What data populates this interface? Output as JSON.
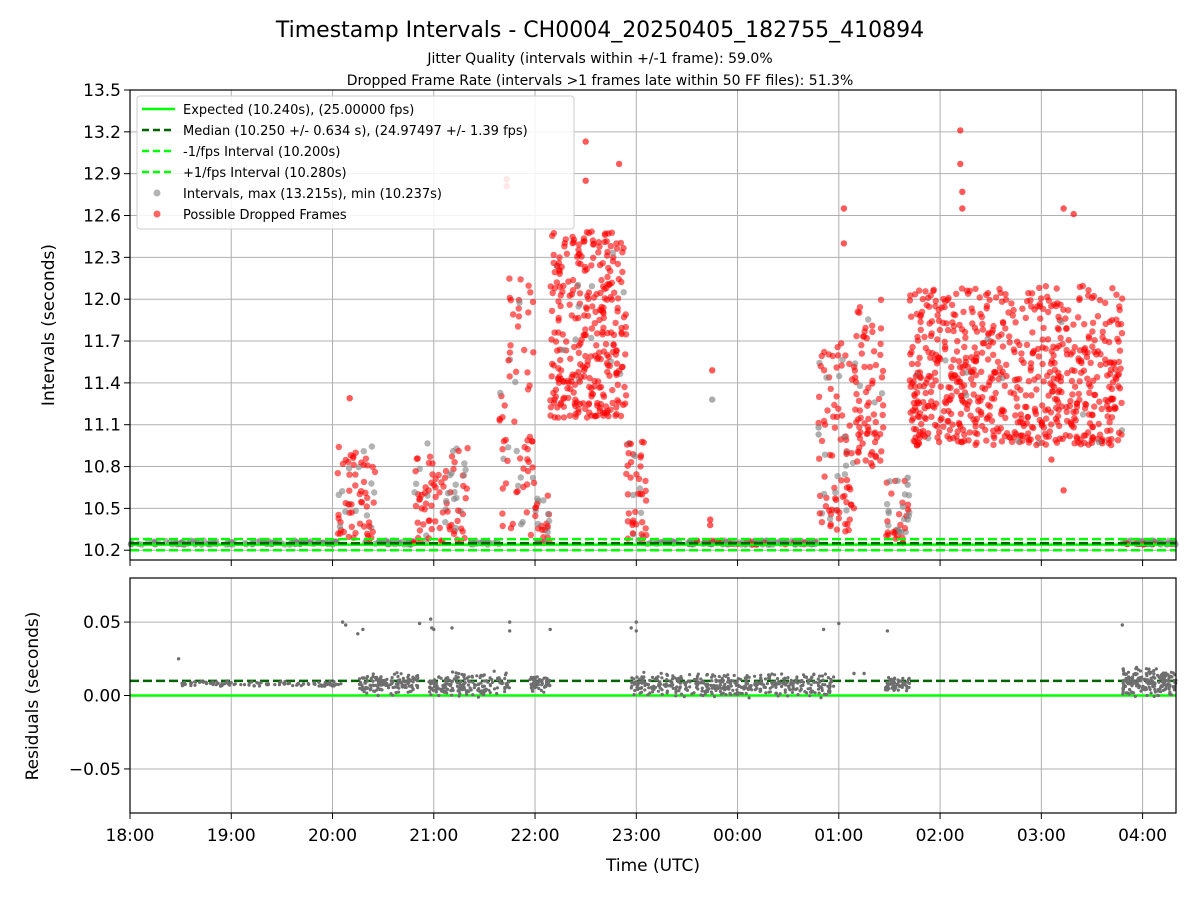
{
  "figure": {
    "title": "Timestamp Intervals - CH0004_20250405_182755_410894",
    "subtitle_1": "Jitter Quality (intervals within +/-1 frame): 59.0%",
    "subtitle_2": "Dropped Frame Rate (intervals >1 frames late within 50 FF files): 51.3%"
  },
  "colors": {
    "expected": "#00ff00",
    "median": "#006400",
    "fps_interval": "#00ff00",
    "intervals": "#808080",
    "dropped": "#ff0000",
    "grid": "#b0b0b0"
  },
  "chart_data": [
    {
      "type": "scatter",
      "panel": "top",
      "ylabel": "Intervals (seconds)",
      "xlabel": "",
      "x_ticks": [
        "18:00",
        "19:00",
        "20:00",
        "21:00",
        "22:00",
        "23:00",
        "00:00",
        "01:00",
        "02:00",
        "03:00",
        "04:00"
      ],
      "y_ticks": [
        "10.2",
        "10.5",
        "10.8",
        "11.1",
        "11.4",
        "11.7",
        "12.0",
        "12.3",
        "12.6",
        "12.9",
        "13.2",
        "13.5"
      ],
      "ylim": [
        10.13,
        13.5
      ],
      "xlim_hours": [
        18.0,
        28.33
      ],
      "grid": true,
      "legend_placement": "top-left",
      "reference_lines": [
        {
          "name": "Expected (10.240s), (25.00000 fps)",
          "y": 10.24,
          "style": "solid"
        },
        {
          "name": "Median (10.250 +/- 0.634 s), (24.97497 +/- 1.39 fps)",
          "y": 10.25,
          "style": "dashed"
        },
        {
          "name": "-1/fps Interval (10.200s)",
          "y": 10.2,
          "style": "dashed"
        },
        {
          "name": "+1/fps Interval (10.280s)",
          "y": 10.28,
          "style": "dashed"
        }
      ],
      "series": [
        {
          "name": "Intervals, max (13.215s), min (10.237s)",
          "marker": "circle"
        },
        {
          "name": "Possible Dropped Frames",
          "marker": "circle"
        }
      ],
      "clusters": [
        {
          "x_start": 18.0,
          "x_end": 20.05,
          "y_min": 10.24,
          "y_max": 10.27,
          "n": 120,
          "dropped_ratio": 0.0
        },
        {
          "x_start": 20.05,
          "x_end": 20.42,
          "y_min": 10.25,
          "y_max": 10.98,
          "n": 70,
          "dropped_ratio": 0.7
        },
        {
          "x_start": 20.42,
          "x_end": 20.8,
          "y_min": 10.24,
          "y_max": 10.27,
          "n": 30,
          "dropped_ratio": 0.0
        },
        {
          "x_start": 20.8,
          "x_end": 21.35,
          "y_min": 10.25,
          "y_max": 10.97,
          "n": 95,
          "dropped_ratio": 0.75
        },
        {
          "x_start": 21.35,
          "x_end": 21.65,
          "y_min": 10.24,
          "y_max": 10.27,
          "n": 20,
          "dropped_ratio": 0.0
        },
        {
          "x_start": 21.65,
          "x_end": 22.0,
          "y_min": 10.3,
          "y_max": 12.24,
          "n": 70,
          "dropped_ratio": 0.85
        },
        {
          "x_start": 22.0,
          "x_end": 22.15,
          "y_min": 10.25,
          "y_max": 10.6,
          "n": 30,
          "dropped_ratio": 0.5
        },
        {
          "x_start": 22.15,
          "x_end": 22.9,
          "y_min": 11.15,
          "y_max": 12.5,
          "n": 320,
          "dropped_ratio": 0.97
        },
        {
          "x_start": 22.9,
          "x_end": 23.1,
          "y_min": 10.25,
          "y_max": 11.0,
          "n": 45,
          "dropped_ratio": 0.9
        },
        {
          "x_start": 23.1,
          "x_end": 24.8,
          "y_min": 10.24,
          "y_max": 10.27,
          "n": 160,
          "dropped_ratio": 0.1
        },
        {
          "x_start": 24.8,
          "x_end": 25.15,
          "y_min": 10.3,
          "y_max": 11.7,
          "n": 90,
          "dropped_ratio": 0.85
        },
        {
          "x_start": 25.15,
          "x_end": 25.45,
          "y_min": 10.8,
          "y_max": 12.0,
          "n": 80,
          "dropped_ratio": 0.95
        },
        {
          "x_start": 25.45,
          "x_end": 25.7,
          "y_min": 10.25,
          "y_max": 10.7,
          "n": 40,
          "dropped_ratio": 0.6
        },
        {
          "x_start": 25.7,
          "x_end": 27.8,
          "y_min": 10.95,
          "y_max": 12.1,
          "n": 700,
          "dropped_ratio": 0.98
        },
        {
          "x_start": 27.8,
          "x_end": 28.33,
          "y_min": 10.24,
          "y_max": 10.27,
          "n": 60,
          "dropped_ratio": 0.15
        }
      ],
      "outliers": [
        {
          "x": 20.17,
          "y": 11.29,
          "kind": "dropped"
        },
        {
          "x": 21.72,
          "y": 12.86,
          "kind": "dropped"
        },
        {
          "x": 21.72,
          "y": 12.81,
          "kind": "dropped"
        },
        {
          "x": 22.5,
          "y": 13.13,
          "kind": "dropped"
        },
        {
          "x": 22.83,
          "y": 12.97,
          "kind": "dropped"
        },
        {
          "x": 22.5,
          "y": 12.85,
          "kind": "dropped"
        },
        {
          "x": 23.75,
          "y": 11.49,
          "kind": "dropped"
        },
        {
          "x": 23.75,
          "y": 11.28,
          "kind": "interval"
        },
        {
          "x": 23.73,
          "y": 10.42,
          "kind": "dropped"
        },
        {
          "x": 23.73,
          "y": 10.38,
          "kind": "dropped"
        },
        {
          "x": 25.05,
          "y": 12.65,
          "kind": "dropped"
        },
        {
          "x": 25.05,
          "y": 12.4,
          "kind": "dropped"
        },
        {
          "x": 26.2,
          "y": 13.21,
          "kind": "dropped"
        },
        {
          "x": 26.2,
          "y": 12.97,
          "kind": "dropped"
        },
        {
          "x": 26.22,
          "y": 12.77,
          "kind": "dropped"
        },
        {
          "x": 26.22,
          "y": 12.65,
          "kind": "dropped"
        },
        {
          "x": 27.22,
          "y": 12.65,
          "kind": "dropped"
        },
        {
          "x": 27.32,
          "y": 12.61,
          "kind": "dropped"
        },
        {
          "x": 27.22,
          "y": 10.63,
          "kind": "dropped"
        },
        {
          "x": 27.1,
          "y": 10.85,
          "kind": "dropped"
        },
        {
          "x": 25.68,
          "y": 10.72,
          "kind": "interval"
        },
        {
          "x": 25.68,
          "y": 10.67,
          "kind": "interval"
        },
        {
          "x": 25.68,
          "y": 10.42,
          "kind": "interval"
        },
        {
          "x": 24.8,
          "y": 11.08,
          "kind": "interval"
        },
        {
          "x": 24.8,
          "y": 11.03,
          "kind": "interval"
        }
      ]
    },
    {
      "type": "scatter",
      "panel": "bottom",
      "ylabel": "Residuals (seconds)",
      "xlabel": "Time (UTC)",
      "x_ticks": [
        "18:00",
        "19:00",
        "20:00",
        "21:00",
        "22:00",
        "23:00",
        "00:00",
        "01:00",
        "02:00",
        "03:00",
        "04:00"
      ],
      "y_ticks": [
        "−0.05",
        "0.00",
        "0.05"
      ],
      "ylim": [
        -0.08,
        0.08
      ],
      "grid": true,
      "reference_lines": [
        {
          "name": "expected",
          "y": 0.0,
          "style": "solid"
        },
        {
          "name": "median",
          "y": 0.01,
          "style": "dashed"
        }
      ],
      "clusters": [
        {
          "x_start": 18.5,
          "x_end": 20.1,
          "y_min": 0.006,
          "y_max": 0.01,
          "n": 110
        },
        {
          "x_start": 20.25,
          "x_end": 20.85,
          "y_min": 0.0,
          "y_max": 0.016,
          "n": 140
        },
        {
          "x_start": 20.95,
          "x_end": 21.75,
          "y_min": -0.002,
          "y_max": 0.017,
          "n": 180
        },
        {
          "x_start": 21.95,
          "x_end": 22.15,
          "y_min": 0.002,
          "y_max": 0.015,
          "n": 60
        },
        {
          "x_start": 22.95,
          "x_end": 24.95,
          "y_min": -0.002,
          "y_max": 0.016,
          "n": 420
        },
        {
          "x_start": 25.45,
          "x_end": 25.7,
          "y_min": 0.002,
          "y_max": 0.013,
          "n": 60
        },
        {
          "x_start": 27.8,
          "x_end": 28.33,
          "y_min": -0.002,
          "y_max": 0.02,
          "n": 200
        }
      ],
      "outliers": [
        {
          "x": 18.48,
          "y": 0.025
        },
        {
          "x": 20.1,
          "y": 0.05
        },
        {
          "x": 20.13,
          "y": 0.048
        },
        {
          "x": 20.25,
          "y": 0.042
        },
        {
          "x": 20.3,
          "y": 0.045
        },
        {
          "x": 20.86,
          "y": 0.049
        },
        {
          "x": 20.97,
          "y": 0.052
        },
        {
          "x": 20.98,
          "y": 0.046
        },
        {
          "x": 21.0,
          "y": 0.045
        },
        {
          "x": 21.18,
          "y": 0.046
        },
        {
          "x": 21.75,
          "y": 0.05
        },
        {
          "x": 21.75,
          "y": 0.044
        },
        {
          "x": 22.15,
          "y": 0.045
        },
        {
          "x": 22.95,
          "y": 0.046
        },
        {
          "x": 23.0,
          "y": 0.05
        },
        {
          "x": 23.0,
          "y": 0.044
        },
        {
          "x": 24.85,
          "y": 0.045
        },
        {
          "x": 25.0,
          "y": 0.049
        },
        {
          "x": 25.48,
          "y": 0.044
        },
        {
          "x": 27.8,
          "y": 0.048
        },
        {
          "x": 20.45,
          "y": 0.0
        },
        {
          "x": 21.05,
          "y": 0.0
        },
        {
          "x": 25.15,
          "y": 0.015
        },
        {
          "x": 25.25,
          "y": 0.015
        }
      ]
    }
  ]
}
